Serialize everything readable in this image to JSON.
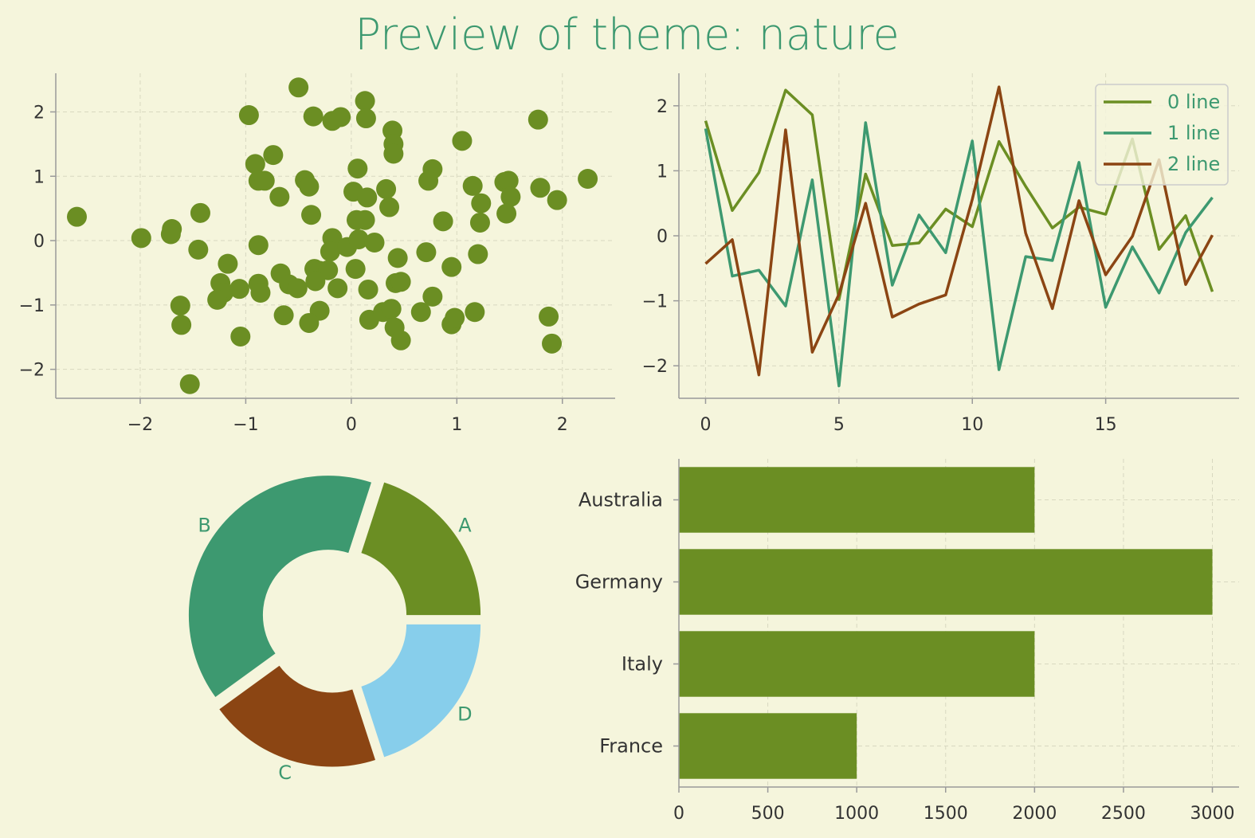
{
  "title": "Preview of theme: nature",
  "colors": {
    "background": "#f5f5dc",
    "text_accent": "#3d9970",
    "series": [
      "#6b8e23",
      "#3d9970",
      "#8b4513",
      "#87ceeb"
    ],
    "grid": "#d8d8c0",
    "axis": "#9a9a9a"
  },
  "chart_data": [
    {
      "type": "scatter",
      "xlim": [
        -2.8,
        2.5
      ],
      "ylim": [
        -2.45,
        2.6
      ],
      "xticks": [
        "−2",
        "−1",
        "0",
        "1",
        "2"
      ],
      "xtick_values": [
        -2,
        -1,
        0,
        1,
        2
      ],
      "yticks": [
        "−2",
        "−1",
        "0",
        "1",
        "2"
      ],
      "ytick_values": [
        -2,
        -1,
        0,
        1,
        2
      ],
      "grid": true,
      "points": [
        [
          -0.5,
          2.38
        ],
        [
          0.13,
          2.17
        ],
        [
          -0.97,
          1.95
        ],
        [
          -0.36,
          1.93
        ],
        [
          -0.18,
          1.86
        ],
        [
          -0.1,
          1.92
        ],
        [
          0.14,
          1.9
        ],
        [
          0.39,
          1.71
        ],
        [
          0.4,
          1.5
        ],
        [
          0.4,
          1.35
        ],
        [
          1.77,
          1.88
        ],
        [
          1.05,
          1.55
        ],
        [
          -0.74,
          1.33
        ],
        [
          -0.91,
          1.19
        ],
        [
          -0.88,
          0.93
        ],
        [
          -0.82,
          0.93
        ],
        [
          -0.44,
          0.94
        ],
        [
          -0.4,
          0.84
        ],
        [
          0.06,
          1.12
        ],
        [
          0.77,
          1.11
        ],
        [
          0.73,
          0.93
        ],
        [
          1.15,
          0.85
        ],
        [
          1.45,
          0.91
        ],
        [
          1.49,
          0.93
        ],
        [
          1.51,
          0.68
        ],
        [
          2.24,
          0.96
        ],
        [
          1.79,
          0.82
        ],
        [
          1.95,
          0.63
        ],
        [
          1.23,
          0.58
        ],
        [
          1.47,
          0.42
        ],
        [
          1.22,
          0.28
        ],
        [
          0.87,
          0.3
        ],
        [
          0.02,
          0.76
        ],
        [
          0.15,
          0.67
        ],
        [
          0.33,
          0.8
        ],
        [
          0.36,
          0.52
        ],
        [
          -0.68,
          0.68
        ],
        [
          -0.38,
          0.4
        ],
        [
          -2.6,
          0.37
        ],
        [
          -1.43,
          0.43
        ],
        [
          -1.7,
          0.18
        ],
        [
          -1.71,
          0.1
        ],
        [
          -1.99,
          0.04
        ],
        [
          -1.45,
          -0.14
        ],
        [
          -0.88,
          -0.07
        ],
        [
          -0.18,
          0.04
        ],
        [
          -0.2,
          -0.17
        ],
        [
          -0.04,
          -0.1
        ],
        [
          0.05,
          0.32
        ],
        [
          0.13,
          0.32
        ],
        [
          0.07,
          0.02
        ],
        [
          0.22,
          -0.03
        ],
        [
          0.04,
          -0.44
        ],
        [
          0.44,
          -0.27
        ],
        [
          0.71,
          -0.18
        ],
        [
          1.2,
          -0.21
        ],
        [
          0.95,
          -0.41
        ],
        [
          -1.17,
          -0.36
        ],
        [
          -1.24,
          -0.66
        ],
        [
          -1.21,
          -0.81
        ],
        [
          -1.27,
          -0.92
        ],
        [
          -1.06,
          -0.75
        ],
        [
          -0.88,
          -0.67
        ],
        [
          -0.86,
          -0.81
        ],
        [
          -0.67,
          -0.51
        ],
        [
          -0.59,
          -0.68
        ],
        [
          -0.51,
          -0.74
        ],
        [
          -0.35,
          -0.44
        ],
        [
          -0.3,
          -0.47
        ],
        [
          -0.22,
          -0.46
        ],
        [
          -0.34,
          -0.63
        ],
        [
          -0.13,
          -0.74
        ],
        [
          0.16,
          -0.76
        ],
        [
          0.42,
          -0.66
        ],
        [
          0.47,
          -0.64
        ],
        [
          0.77,
          -0.87
        ],
        [
          -1.62,
          -1.01
        ],
        [
          -1.61,
          -1.31
        ],
        [
          -0.64,
          -1.16
        ],
        [
          -0.3,
          -1.09
        ],
        [
          -0.4,
          -1.28
        ],
        [
          0.17,
          -1.23
        ],
        [
          0.3,
          -1.11
        ],
        [
          0.38,
          -1.06
        ],
        [
          0.41,
          -1.35
        ],
        [
          0.66,
          -1.11
        ],
        [
          0.95,
          -1.3
        ],
        [
          0.98,
          -1.2
        ],
        [
          1.17,
          -1.11
        ],
        [
          1.87,
          -1.18
        ],
        [
          0.47,
          -1.55
        ],
        [
          1.9,
          -1.6
        ],
        [
          -1.05,
          -1.49
        ],
        [
          -1.53,
          -2.23
        ]
      ]
    },
    {
      "type": "line",
      "x": [
        0,
        1,
        2,
        3,
        4,
        5,
        6,
        7,
        8,
        9,
        10,
        11,
        12,
        13,
        14,
        15,
        16,
        17,
        18,
        19
      ],
      "xlim": [
        -1,
        20
      ],
      "ylim": [
        -2.5,
        2.5
      ],
      "xticks": [
        "0",
        "5",
        "10",
        "15"
      ],
      "xtick_values": [
        0,
        5,
        10,
        15
      ],
      "yticks": [
        "−2",
        "−1",
        "0",
        "1",
        "2"
      ],
      "ytick_values": [
        -2,
        -1,
        0,
        1,
        2
      ],
      "grid": true,
      "legend_position": "top-right",
      "series": [
        {
          "name": "0 line",
          "values": [
            1.77,
            0.39,
            0.97,
            2.24,
            1.86,
            -0.98,
            0.95,
            -0.15,
            -0.11,
            0.41,
            0.14,
            1.45,
            0.76,
            0.12,
            0.44,
            0.33,
            1.49,
            -0.21,
            0.31,
            -0.86
          ]
        },
        {
          "name": "1 line",
          "values": [
            1.65,
            -0.62,
            -0.53,
            -1.08,
            0.86,
            -2.31,
            1.74,
            -0.76,
            0.32,
            -0.26,
            1.46,
            -2.06,
            -0.32,
            -0.38,
            1.13,
            -1.1,
            -0.17,
            -0.88,
            0.05,
            0.59
          ]
        },
        {
          "name": "2 line",
          "values": [
            -0.43,
            -0.06,
            -2.14,
            1.63,
            -1.79,
            -0.9,
            0.5,
            -1.25,
            -1.05,
            -0.91,
            0.56,
            2.29,
            0.04,
            -1.12,
            0.54,
            -0.6,
            -0.01,
            1.17,
            -0.75,
            0.01
          ]
        }
      ]
    },
    {
      "type": "pie",
      "style": "donut",
      "labels": [
        "A",
        "B",
        "C",
        "D"
      ],
      "values": [
        20,
        40,
        20,
        20
      ]
    },
    {
      "type": "bar",
      "orientation": "horizontal",
      "categories": [
        "France",
        "Italy",
        "Germany",
        "Australia"
      ],
      "values": [
        1000,
        2000,
        3000,
        2000
      ],
      "xlim": [
        0,
        3150
      ],
      "xticks": [
        "0",
        "500",
        "1000",
        "1500",
        "2000",
        "2500",
        "3000"
      ],
      "xtick_values": [
        0,
        500,
        1000,
        1500,
        2000,
        2500,
        3000
      ],
      "grid": true
    }
  ]
}
